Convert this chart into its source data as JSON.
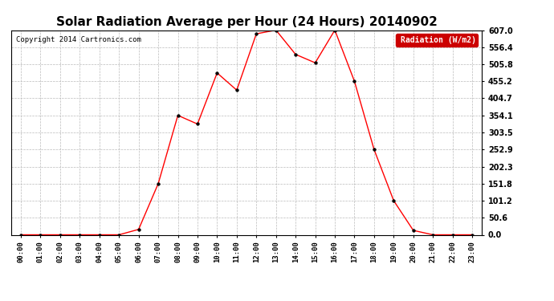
{
  "title": "Solar Radiation Average per Hour (24 Hours) 20140902",
  "copyright": "Copyright 2014 Cartronics.com",
  "legend_label": "Radiation (W/m2)",
  "hours": [
    "00:00",
    "01:00",
    "02:00",
    "03:00",
    "04:00",
    "05:00",
    "06:00",
    "07:00",
    "08:00",
    "09:00",
    "10:00",
    "11:00",
    "12:00",
    "13:00",
    "14:00",
    "15:00",
    "16:00",
    "17:00",
    "18:00",
    "19:00",
    "20:00",
    "21:00",
    "22:00",
    "23:00"
  ],
  "values": [
    0.0,
    0.0,
    0.0,
    0.0,
    0.0,
    0.0,
    16.0,
    151.8,
    354.1,
    328.5,
    480.0,
    429.0,
    596.0,
    607.0,
    535.0,
    510.0,
    607.0,
    455.2,
    252.9,
    101.2,
    13.0,
    0.0,
    0.0,
    0.0
  ],
  "line_color": "red",
  "marker_color": "black",
  "grid_color": "#bbbbbb",
  "bg_color": "white",
  "yticks": [
    0.0,
    50.6,
    101.2,
    151.8,
    202.3,
    252.9,
    303.5,
    354.1,
    404.7,
    455.2,
    505.8,
    556.4,
    607.0
  ],
  "ylim": [
    0.0,
    607.0
  ],
  "title_fontsize": 11,
  "legend_bg": "#cc0000",
  "legend_text_color": "white"
}
